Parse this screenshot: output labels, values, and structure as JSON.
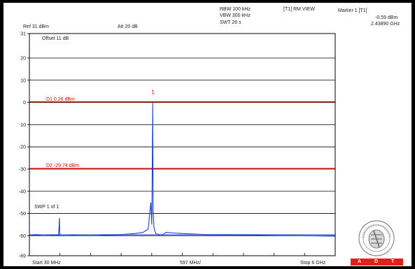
{
  "header": {
    "rbw": "RBW 100 kHz",
    "vbw": "VBW 300 kHz",
    "swt": "SWT 26 s",
    "view": "[T1] RM VIEW",
    "marker_title": "Marker 1 [T1]",
    "marker_level": "-0.59 dBm",
    "marker_freq": "2.43890 GHz",
    "ref_level": "Ref 31 dBm",
    "attenuation": "Att 20 dB",
    "offset": "Offset 11 dB"
  },
  "lines": {
    "d1_label": "D1 0.26 dBm",
    "d2_label": "D2 -29.74 dBm",
    "marker_number": "1",
    "swp": "SWP 1 of 1"
  },
  "footer": {
    "start": "Start 30 MHz",
    "span": "597 MHz/",
    "stop": "Stop 6 GHz",
    "adt_letters": [
      "A",
      "D",
      "T"
    ]
  },
  "colors": {
    "trace": "#1f3fcf",
    "limit": "#e00000",
    "brand": "#e0211a"
  },
  "chart_data": {
    "type": "line",
    "xlabel": "",
    "ylabel": "",
    "x_range_mhz": [
      30,
      6000
    ],
    "ylim": [
      -69,
      31
    ],
    "yticks": [
      31,
      20,
      10,
      0,
      -10,
      -20,
      -30,
      -40,
      -50,
      -60,
      -69
    ],
    "ytick_labels": [
      "31",
      "20",
      "10",
      "0",
      "-10",
      "-20",
      "-30",
      "-40",
      "-50",
      "-60",
      "-69"
    ],
    "grid": true,
    "display_lines": [
      {
        "name": "D1",
        "level_dbm": 0.26
      },
      {
        "name": "D2",
        "level_dbm": -29.74
      }
    ],
    "marker": {
      "label": "1",
      "freq_ghz": 2.4389,
      "level_dbm": -0.59
    },
    "series": [
      {
        "x": [
          30,
          150,
          300,
          450,
          600,
          617,
          622,
          630,
          700,
          900,
          1200,
          1500,
          1800,
          2100,
          2250,
          2350,
          2400,
          2420,
          2438,
          2445,
          2460,
          2480,
          2500,
          2600,
          2700,
          3000,
          3500,
          4000,
          4500,
          5000,
          5500,
          6000
        ],
        "y": [
          -60,
          -59.5,
          -60,
          -59.8,
          -59.8,
          -52,
          -59,
          -60,
          -60,
          -59.8,
          -60,
          -59.7,
          -59.5,
          -59,
          -58.5,
          -57,
          -45,
          -55,
          -0.59,
          -48,
          -56,
          -58,
          -59,
          -60,
          -58.5,
          -59,
          -59.5,
          -59.6,
          -59.7,
          -59.9,
          -60,
          -60.2
        ]
      }
    ]
  }
}
